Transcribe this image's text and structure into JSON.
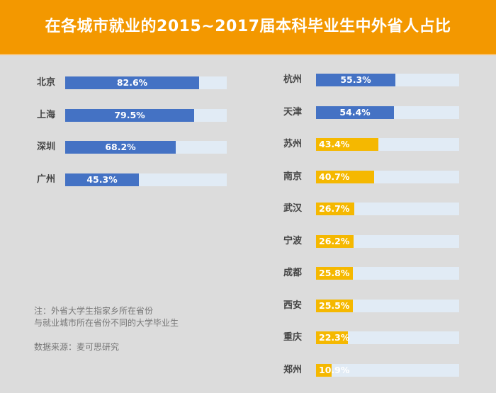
{
  "header": {
    "title": "在各城市就业的2015~2017届本科毕业生中外省人占比"
  },
  "notes": {
    "line1": "注：外省大学生指家乡所在省份",
    "line2": "与就业城市所在省份不同的大学毕业生",
    "source": "数据来源：麦可思研究"
  },
  "colors": {
    "header": "#f39800",
    "blue": "#4472c4",
    "yellow": "#f5b800",
    "track": "#e1ebf5",
    "background": "#dcdcdc"
  },
  "chart_data": {
    "type": "bar",
    "orientation": "horizontal",
    "title": "在各城市就业的2015~2017届本科毕业生中外省人占比",
    "xlabel": "",
    "ylabel": "",
    "xlim": [
      0,
      100
    ],
    "unit": "%",
    "groups": [
      {
        "name": "left",
        "categories": [
          "北京",
          "上海",
          "深圳",
          "广州"
        ],
        "values": [
          82.6,
          79.5,
          68.2,
          45.3
        ],
        "labels": [
          "82.6%",
          "79.5%",
          "68.2%",
          "45.3%"
        ],
        "colors": [
          "blue",
          "blue",
          "blue",
          "blue"
        ]
      },
      {
        "name": "right",
        "categories": [
          "杭州",
          "天津",
          "苏州",
          "南京",
          "武汉",
          "宁波",
          "成都",
          "西安",
          "重庆",
          "郑州"
        ],
        "values": [
          55.3,
          54.4,
          43.4,
          40.7,
          26.7,
          26.2,
          25.8,
          25.5,
          22.3,
          10.9
        ],
        "labels": [
          "55.3%",
          "54.4%",
          "43.4%",
          "40.7%",
          "26.7%",
          "26.2%",
          "25.8%",
          "25.5%",
          "22.3%",
          "10.9%"
        ],
        "colors": [
          "blue",
          "blue",
          "yellow",
          "yellow",
          "yellow",
          "yellow",
          "yellow",
          "yellow",
          "yellow",
          "yellow"
        ]
      }
    ]
  }
}
